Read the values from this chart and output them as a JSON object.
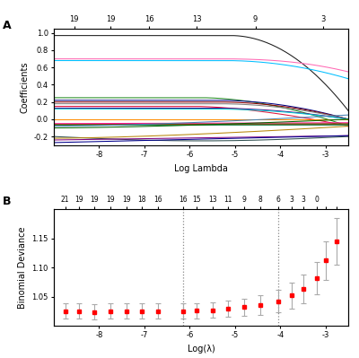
{
  "panel_a": {
    "xlabel": "Log Lambda",
    "ylabel": "Coefficients",
    "xlim": [
      -9.0,
      -2.5
    ],
    "ylim": [
      -0.3,
      1.05
    ],
    "top_pos": [
      -8.55,
      -7.75,
      -6.9,
      -5.85,
      -4.55,
      -3.05
    ],
    "top_labels": [
      "19",
      "19",
      "16",
      "13",
      "9",
      "3"
    ],
    "xticks": [
      -8,
      -7,
      -6,
      -5,
      -4,
      -3
    ],
    "yticks": [
      -0.2,
      0.0,
      0.2,
      0.4,
      0.6,
      0.8,
      1.0
    ],
    "label": "A"
  },
  "panel_b": {
    "xlabel": "Log(λ)",
    "ylabel": "Binomial Deviance",
    "xlim": [
      -9.0,
      -2.5
    ],
    "ylim": [
      1.0,
      1.2
    ],
    "vline1": -6.15,
    "vline2": -4.05,
    "xticks": [
      -8,
      -7,
      -6,
      -5,
      -4,
      -3
    ],
    "yticks": [
      1.05,
      1.1,
      1.15
    ],
    "label": "B",
    "top_pos": [
      -8.75,
      -8.45,
      -8.1,
      -7.75,
      -7.4,
      -7.05,
      -6.7,
      -6.15,
      -5.85,
      -5.5,
      -5.15,
      -4.8,
      -4.45,
      -4.05,
      -3.75,
      -3.5,
      -3.2,
      -3.0,
      -2.75
    ],
    "top_labels": [
      "21",
      "19",
      "19",
      "19",
      "19",
      "18",
      "16",
      "16",
      "15",
      "13",
      "11",
      "9",
      "8",
      "6",
      "3",
      "3",
      "0",
      "",
      ""
    ],
    "x_pts": [
      -8.75,
      -8.45,
      -8.1,
      -7.75,
      -7.4,
      -7.05,
      -6.7,
      -6.15,
      -5.85,
      -5.5,
      -5.15,
      -4.8,
      -4.45,
      -4.05,
      -3.75,
      -3.5,
      -3.2,
      -3.0,
      -2.75
    ],
    "y_mean": [
      1.025,
      1.025,
      1.024,
      1.025,
      1.025,
      1.025,
      1.025,
      1.025,
      1.026,
      1.027,
      1.029,
      1.032,
      1.036,
      1.042,
      1.052,
      1.063,
      1.082,
      1.112,
      1.145
    ],
    "y_err": [
      0.013,
      0.013,
      0.013,
      0.013,
      0.013,
      0.013,
      0.013,
      0.013,
      0.013,
      0.013,
      0.014,
      0.015,
      0.017,
      0.019,
      0.022,
      0.025,
      0.028,
      0.033,
      0.04
    ]
  },
  "line_colors": [
    "#1a1a1a",
    "#FF69B4",
    "#00BFFF",
    "#228B22",
    "#000080",
    "#8B0000",
    "#808080",
    "#DC143C",
    "#4B0082",
    "#00CED1",
    "#FF8C00",
    "#556B2F",
    "#FF1493",
    "#2E8B57",
    "#8B4513",
    "#4682B4",
    "#006400",
    "#2F4F4F",
    "#B8860B",
    "#800080",
    "#00008B"
  ]
}
